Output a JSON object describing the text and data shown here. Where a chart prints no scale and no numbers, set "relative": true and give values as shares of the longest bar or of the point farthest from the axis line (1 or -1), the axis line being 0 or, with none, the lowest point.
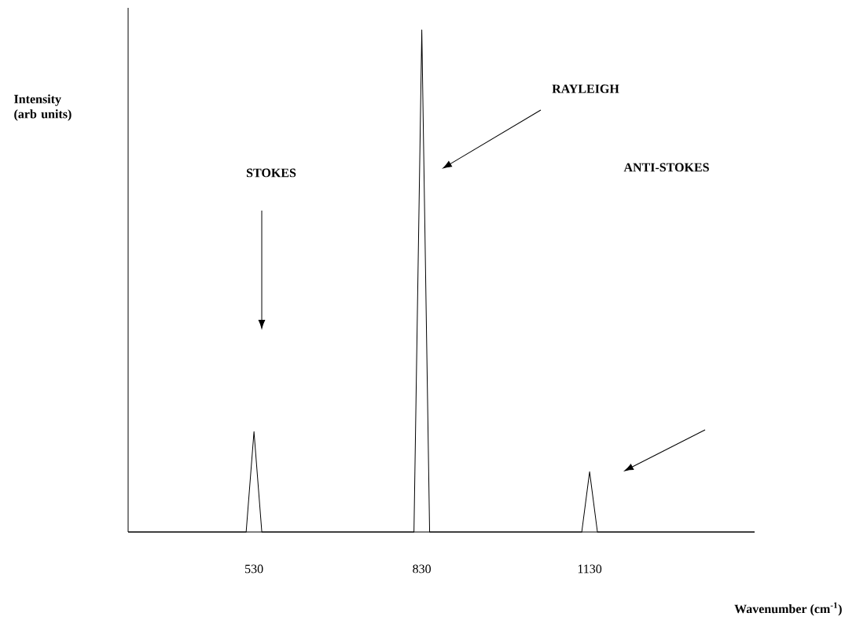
{
  "chart_data": {
    "type": "line",
    "xlabel": "Wavenumber (cm$^{-1}$)",
    "ylabel": "Intensity (arb units)",
    "relative": true,
    "color": "#000000",
    "x": [
      305,
      516,
      530,
      544,
      816,
      830,
      844,
      1116,
      1130,
      1144,
      1425
    ],
    "values": [
      0,
      0,
      0.2,
      0,
      0,
      1,
      0,
      0,
      0.12,
      0,
      0
    ],
    "xlim": [
      305,
      1425
    ],
    "xticks": [
      530,
      830,
      1130
    ],
    "annotations": [
      "STOKES",
      "RAYLEIGH",
      "ANTI-STOKES"
    ]
  }
}
